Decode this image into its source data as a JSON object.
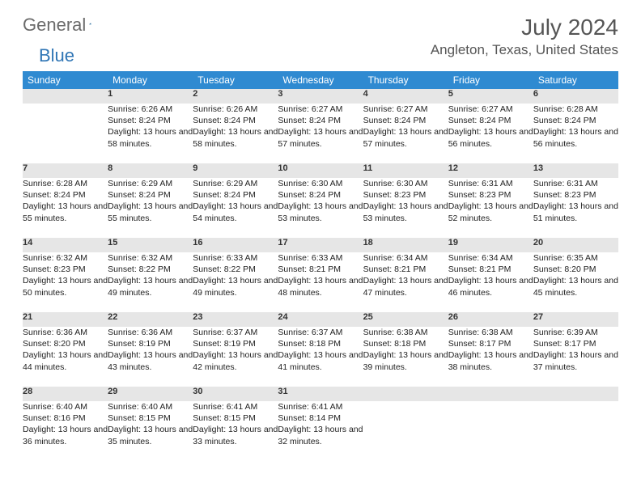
{
  "logo": {
    "part1": "General",
    "part2": "Blue"
  },
  "header": {
    "month_title": "July 2024",
    "location": "Angleton, Texas, United States"
  },
  "colors": {
    "header_bg": "#2f8ad1",
    "header_text": "#ffffff",
    "daynum_bg": "#e6e6e6",
    "row_divider": "#1f5b8a",
    "logo_gray": "#6b6b6b",
    "logo_blue": "#2f75b5",
    "title_color": "#555555"
  },
  "daynames": [
    "Sunday",
    "Monday",
    "Tuesday",
    "Wednesday",
    "Thursday",
    "Friday",
    "Saturday"
  ],
  "weeks": [
    {
      "nums": [
        "",
        "1",
        "2",
        "3",
        "4",
        "5",
        "6"
      ],
      "cells": [
        null,
        {
          "sunrise": "6:26 AM",
          "sunset": "8:24 PM",
          "daylight": "13 hours and 58 minutes."
        },
        {
          "sunrise": "6:26 AM",
          "sunset": "8:24 PM",
          "daylight": "13 hours and 58 minutes."
        },
        {
          "sunrise": "6:27 AM",
          "sunset": "8:24 PM",
          "daylight": "13 hours and 57 minutes."
        },
        {
          "sunrise": "6:27 AM",
          "sunset": "8:24 PM",
          "daylight": "13 hours and 57 minutes."
        },
        {
          "sunrise": "6:27 AM",
          "sunset": "8:24 PM",
          "daylight": "13 hours and 56 minutes."
        },
        {
          "sunrise": "6:28 AM",
          "sunset": "8:24 PM",
          "daylight": "13 hours and 56 minutes."
        }
      ]
    },
    {
      "nums": [
        "7",
        "8",
        "9",
        "10",
        "11",
        "12",
        "13"
      ],
      "cells": [
        {
          "sunrise": "6:28 AM",
          "sunset": "8:24 PM",
          "daylight": "13 hours and 55 minutes."
        },
        {
          "sunrise": "6:29 AM",
          "sunset": "8:24 PM",
          "daylight": "13 hours and 55 minutes."
        },
        {
          "sunrise": "6:29 AM",
          "sunset": "8:24 PM",
          "daylight": "13 hours and 54 minutes."
        },
        {
          "sunrise": "6:30 AM",
          "sunset": "8:24 PM",
          "daylight": "13 hours and 53 minutes."
        },
        {
          "sunrise": "6:30 AM",
          "sunset": "8:23 PM",
          "daylight": "13 hours and 53 minutes."
        },
        {
          "sunrise": "6:31 AM",
          "sunset": "8:23 PM",
          "daylight": "13 hours and 52 minutes."
        },
        {
          "sunrise": "6:31 AM",
          "sunset": "8:23 PM",
          "daylight": "13 hours and 51 minutes."
        }
      ]
    },
    {
      "nums": [
        "14",
        "15",
        "16",
        "17",
        "18",
        "19",
        "20"
      ],
      "cells": [
        {
          "sunrise": "6:32 AM",
          "sunset": "8:23 PM",
          "daylight": "13 hours and 50 minutes."
        },
        {
          "sunrise": "6:32 AM",
          "sunset": "8:22 PM",
          "daylight": "13 hours and 49 minutes."
        },
        {
          "sunrise": "6:33 AM",
          "sunset": "8:22 PM",
          "daylight": "13 hours and 49 minutes."
        },
        {
          "sunrise": "6:33 AM",
          "sunset": "8:21 PM",
          "daylight": "13 hours and 48 minutes."
        },
        {
          "sunrise": "6:34 AM",
          "sunset": "8:21 PM",
          "daylight": "13 hours and 47 minutes."
        },
        {
          "sunrise": "6:34 AM",
          "sunset": "8:21 PM",
          "daylight": "13 hours and 46 minutes."
        },
        {
          "sunrise": "6:35 AM",
          "sunset": "8:20 PM",
          "daylight": "13 hours and 45 minutes."
        }
      ]
    },
    {
      "nums": [
        "21",
        "22",
        "23",
        "24",
        "25",
        "26",
        "27"
      ],
      "cells": [
        {
          "sunrise": "6:36 AM",
          "sunset": "8:20 PM",
          "daylight": "13 hours and 44 minutes."
        },
        {
          "sunrise": "6:36 AM",
          "sunset": "8:19 PM",
          "daylight": "13 hours and 43 minutes."
        },
        {
          "sunrise": "6:37 AM",
          "sunset": "8:19 PM",
          "daylight": "13 hours and 42 minutes."
        },
        {
          "sunrise": "6:37 AM",
          "sunset": "8:18 PM",
          "daylight": "13 hours and 41 minutes."
        },
        {
          "sunrise": "6:38 AM",
          "sunset": "8:18 PM",
          "daylight": "13 hours and 39 minutes."
        },
        {
          "sunrise": "6:38 AM",
          "sunset": "8:17 PM",
          "daylight": "13 hours and 38 minutes."
        },
        {
          "sunrise": "6:39 AM",
          "sunset": "8:17 PM",
          "daylight": "13 hours and 37 minutes."
        }
      ]
    },
    {
      "nums": [
        "28",
        "29",
        "30",
        "31",
        "",
        "",
        ""
      ],
      "cells": [
        {
          "sunrise": "6:40 AM",
          "sunset": "8:16 PM",
          "daylight": "13 hours and 36 minutes."
        },
        {
          "sunrise": "6:40 AM",
          "sunset": "8:15 PM",
          "daylight": "13 hours and 35 minutes."
        },
        {
          "sunrise": "6:41 AM",
          "sunset": "8:15 PM",
          "daylight": "13 hours and 33 minutes."
        },
        {
          "sunrise": "6:41 AM",
          "sunset": "8:14 PM",
          "daylight": "13 hours and 32 minutes."
        },
        null,
        null,
        null
      ]
    }
  ],
  "labels": {
    "sunrise": "Sunrise:",
    "sunset": "Sunset:",
    "daylight": "Daylight:"
  }
}
